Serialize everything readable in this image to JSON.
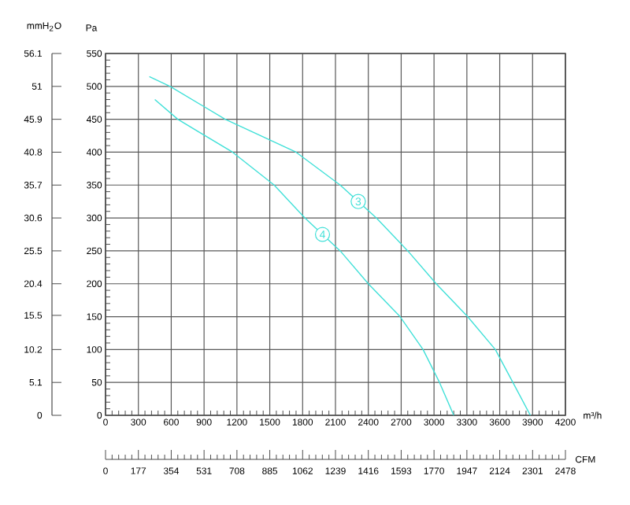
{
  "chart_data": {
    "type": "line",
    "xlabel": "m³/h",
    "ylabel": "Pa",
    "y2label": "mmH$_{2}$O",
    "x2label": "CFM",
    "xlim": [
      0,
      4200
    ],
    "xticks": [
      0,
      300,
      600,
      900,
      1200,
      1500,
      1800,
      2100,
      2400,
      2700,
      3000,
      3300,
      3600,
      3900,
      4200
    ],
    "ylim": [
      0,
      550
    ],
    "yticks": [
      0,
      50,
      100,
      150,
      200,
      250,
      300,
      350,
      400,
      450,
      500,
      550
    ],
    "y2lim": [
      0,
      56.1
    ],
    "y2ticks": [
      0,
      5.1,
      10.2,
      15.5,
      20.4,
      25.5,
      30.6,
      35.7,
      40.8,
      45.9,
      51,
      56.1
    ],
    "x2lim": [
      0,
      2478
    ],
    "x2ticks": [
      0,
      177,
      354,
      531,
      708,
      885,
      1062,
      1239,
      1416,
      1593,
      1770,
      1947,
      2124,
      2301,
      2478
    ],
    "grid": true,
    "marker": "none",
    "line_style": "solid",
    "series": [
      {
        "name": "3",
        "color": "#40e0d8",
        "x": [
          400,
          590,
          1093,
          1740,
          2143,
          2473,
          2760,
          3020,
          3307,
          3560,
          3720,
          3880
        ],
        "values": [
          515,
          500,
          450,
          400,
          350,
          300,
          250,
          200,
          150,
          100,
          50,
          0
        ]
      },
      {
        "name": "4",
        "color": "#40e0d8",
        "x": [
          450,
          660,
          1160,
          1540,
          1820,
          2143,
          2400,
          2690,
          2900,
          3050,
          3180
        ],
        "values": [
          480,
          450,
          400,
          350,
          300,
          250,
          200,
          150,
          100,
          50,
          0
        ]
      }
    ]
  }
}
